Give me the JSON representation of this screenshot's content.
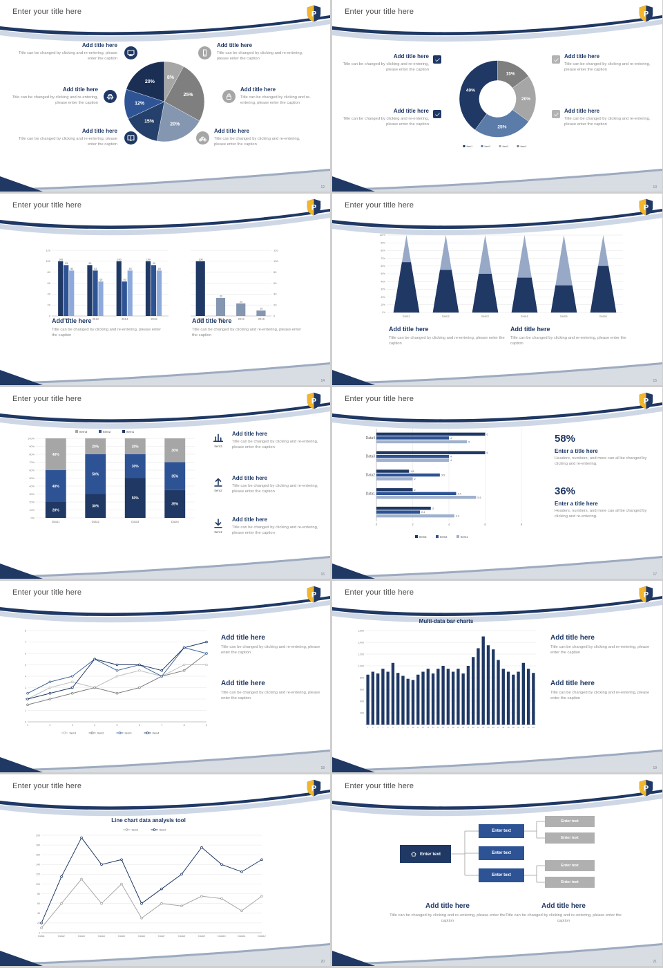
{
  "common": {
    "slide_title": "Enter your title here",
    "add_title": "Add title here",
    "caption": "Title can be changed by clicking and re-entering, please enter the caption",
    "enter_text": "Enter text",
    "enter_a_title": "Enter a title here",
    "stat_caption": "Headers, numbers, and more can all be changed by clicking and re-entering."
  },
  "slides": {
    "s1": {
      "page_no": "12"
    },
    "s2": {
      "page_no": "13"
    },
    "s3": {
      "page_no": "14"
    },
    "s4": {
      "page_no": "15"
    },
    "s5": {
      "page_no": "16",
      "items": [
        {
          "label": "Item3"
        },
        {
          "label": "Item2"
        },
        {
          "label": "Item1"
        }
      ]
    },
    "s6": {
      "page_no": "17",
      "stats": [
        {
          "value": "58%"
        },
        {
          "value": "36%"
        }
      ]
    },
    "s7": {
      "page_no": "18"
    },
    "s8": {
      "page_no": "19"
    },
    "s9": {
      "page_no": "20"
    },
    "s10": {
      "page_no": "21"
    }
  },
  "chart_data": [
    {
      "type": "pie",
      "values": [
        8,
        25,
        20,
        15,
        12,
        20
      ],
      "labels": [
        "8%",
        "25%",
        "20%",
        "15%",
        "12%",
        "20%"
      ],
      "colors": [
        "#A6A6A6",
        "#7F7F7F",
        "#8496B0",
        "#24406B",
        "#2F5496",
        "#1B2F54"
      ]
    },
    {
      "type": "pie",
      "donut": true,
      "values": [
        15,
        20,
        25,
        40
      ],
      "labels": [
        "15%",
        "20%",
        "25%",
        "40%"
      ],
      "colors": [
        "#7F7F7F",
        "#A6A6A6",
        "#5B7BA8",
        "#1F3864"
      ],
      "legend": [
        "Item1",
        "Item2",
        "Item3",
        "Item4"
      ],
      "legend_colors": [
        "#1F3864",
        "#5B7BA8",
        "#A6A6A6",
        "#7F7F7F"
      ]
    },
    {
      "type": "bar",
      "categories": [
        "2010",
        "2012",
        "2014",
        "2016"
      ],
      "series": [
        {
          "name": "s1",
          "color": "#1F3864",
          "values": [
            100,
            93,
            100,
            100
          ]
        },
        {
          "name": "s2",
          "color": "#2E5395",
          "values": [
            93,
            83,
            63,
            93
          ]
        },
        {
          "name": "s3",
          "color": "#8EAADB",
          "values": [
            83,
            63,
            83,
            83
          ]
        }
      ],
      "ylim": [
        0,
        120
      ],
      "yticks": [
        0,
        20,
        40,
        60,
        80,
        100,
        120
      ]
    },
    {
      "type": "bar",
      "categories": [
        "2008",
        "2014",
        "2012",
        "2010"
      ],
      "series": [
        {
          "name": "v",
          "colors": [
            "#1F3864",
            "#8496B0",
            "#8496B0",
            "#8496B0"
          ],
          "values": [
            100,
            33,
            23,
            10
          ]
        }
      ],
      "ylim": [
        0,
        120
      ],
      "yticks": [
        0,
        20,
        40,
        60,
        80,
        100,
        120
      ],
      "yaxis": "right"
    },
    {
      "type": "cone",
      "categories": [
        "Item1",
        "Item2",
        "Item3",
        "Item4",
        "Item5",
        "Item6"
      ],
      "fill_pct": [
        65,
        55,
        50,
        45,
        35,
        60
      ],
      "color_bottom": "#1F3864",
      "color_top": "#97A9C6",
      "ylim": [
        0,
        100
      ]
    },
    {
      "type": "stacked",
      "categories": [
        "Data1",
        "Data2",
        "Data3",
        "Data4"
      ],
      "series": [
        {
          "name": "Item1",
          "color": "#1F3864",
          "values": [
            20,
            30,
            50,
            35
          ]
        },
        {
          "name": "Item2",
          "color": "#2E5395",
          "values": [
            40,
            50,
            30,
            35
          ]
        },
        {
          "name": "Item3",
          "color": "#A6A6A6",
          "values": [
            40,
            20,
            20,
            30
          ]
        }
      ],
      "legend_order": [
        "Item3",
        "Item2",
        "Item1"
      ],
      "ylim": [
        0,
        100
      ]
    },
    {
      "type": "hbar",
      "groups": [
        {
          "label": "Data4",
          "values": [
            6,
            4,
            5
          ]
        },
        {
          "label": "Data3",
          "values": [
            6,
            4,
            4
          ]
        },
        {
          "label": "Data2",
          "values": [
            1.8,
            3.5,
            2
          ]
        },
        {
          "label": "Data1",
          "values": [
            2,
            4.4,
            5.5
          ]
        },
        {
          "label": "",
          "values": [
            3,
            2.4,
            4.3
          ]
        }
      ],
      "colors": [
        "#1F3864",
        "#2E5395",
        "#9FB1CC"
      ],
      "xlim": [
        0,
        8
      ],
      "xticks": [
        0,
        2,
        4,
        6,
        8
      ],
      "legend": [
        "Item3",
        "Item2",
        "Item1"
      ]
    },
    {
      "type": "line",
      "x": [
        1,
        2,
        3,
        4,
        5,
        6,
        7,
        8,
        9
      ],
      "ylim": [
        0,
        8
      ],
      "ytick_step": 1,
      "series": [
        {
          "name": "Item1",
          "color": "#BFBFBF",
          "values": [
            2,
            3,
            3.5,
            3,
            4,
            4.5,
            4,
            5,
            5
          ]
        },
        {
          "name": "Item2",
          "color": "#7F7F7F",
          "values": [
            1.5,
            2,
            2.5,
            3,
            2.5,
            3,
            4,
            4.5,
            6
          ]
        },
        {
          "name": "Item3",
          "color": "#44699D",
          "values": [
            2.5,
            3.5,
            4,
            5.5,
            4.5,
            5,
            4,
            6.5,
            6
          ]
        },
        {
          "name": "Item4",
          "color": "#1F3864",
          "values": [
            2,
            2.5,
            3,
            5.5,
            5,
            5,
            4.5,
            6.5,
            7
          ]
        }
      ]
    },
    {
      "type": "multibar",
      "title": "Multi-data bar charts",
      "color": "#1F3864",
      "values": [
        850,
        900,
        870,
        950,
        900,
        1050,
        880,
        830,
        780,
        760,
        850,
        900,
        950,
        870,
        950,
        1000,
        950,
        900,
        950,
        870,
        1000,
        1150,
        1300,
        1500,
        1350,
        1280,
        1100,
        950,
        900,
        850,
        900,
        1050,
        950,
        880
      ],
      "ylim": [
        0,
        1600
      ],
      "yticks": [
        200,
        400,
        600,
        800,
        1000,
        1200,
        1400,
        1600
      ]
    },
    {
      "type": "line",
      "title": "Line chart data analysis tool",
      "legend_pos": "top",
      "x_labels": [
        "Data1",
        "Data2",
        "Data3",
        "Data4",
        "Data5",
        "Data6",
        "Data7",
        "Data8",
        "Data9",
        "Data10",
        "Data11",
        "Data12"
      ],
      "ylim": [
        0,
        200
      ],
      "ytick_step": 20,
      "series": [
        {
          "name": "Item1",
          "color": "#A6A6A6",
          "values": [
            10,
            60,
            110,
            60,
            100,
            30,
            60,
            55,
            75,
            70,
            45,
            75
          ]
        },
        {
          "name": "Item2",
          "color": "#1F3864",
          "values": [
            20,
            115,
            195,
            140,
            150,
            60,
            90,
            120,
            175,
            140,
            125,
            150
          ]
        }
      ]
    }
  ]
}
